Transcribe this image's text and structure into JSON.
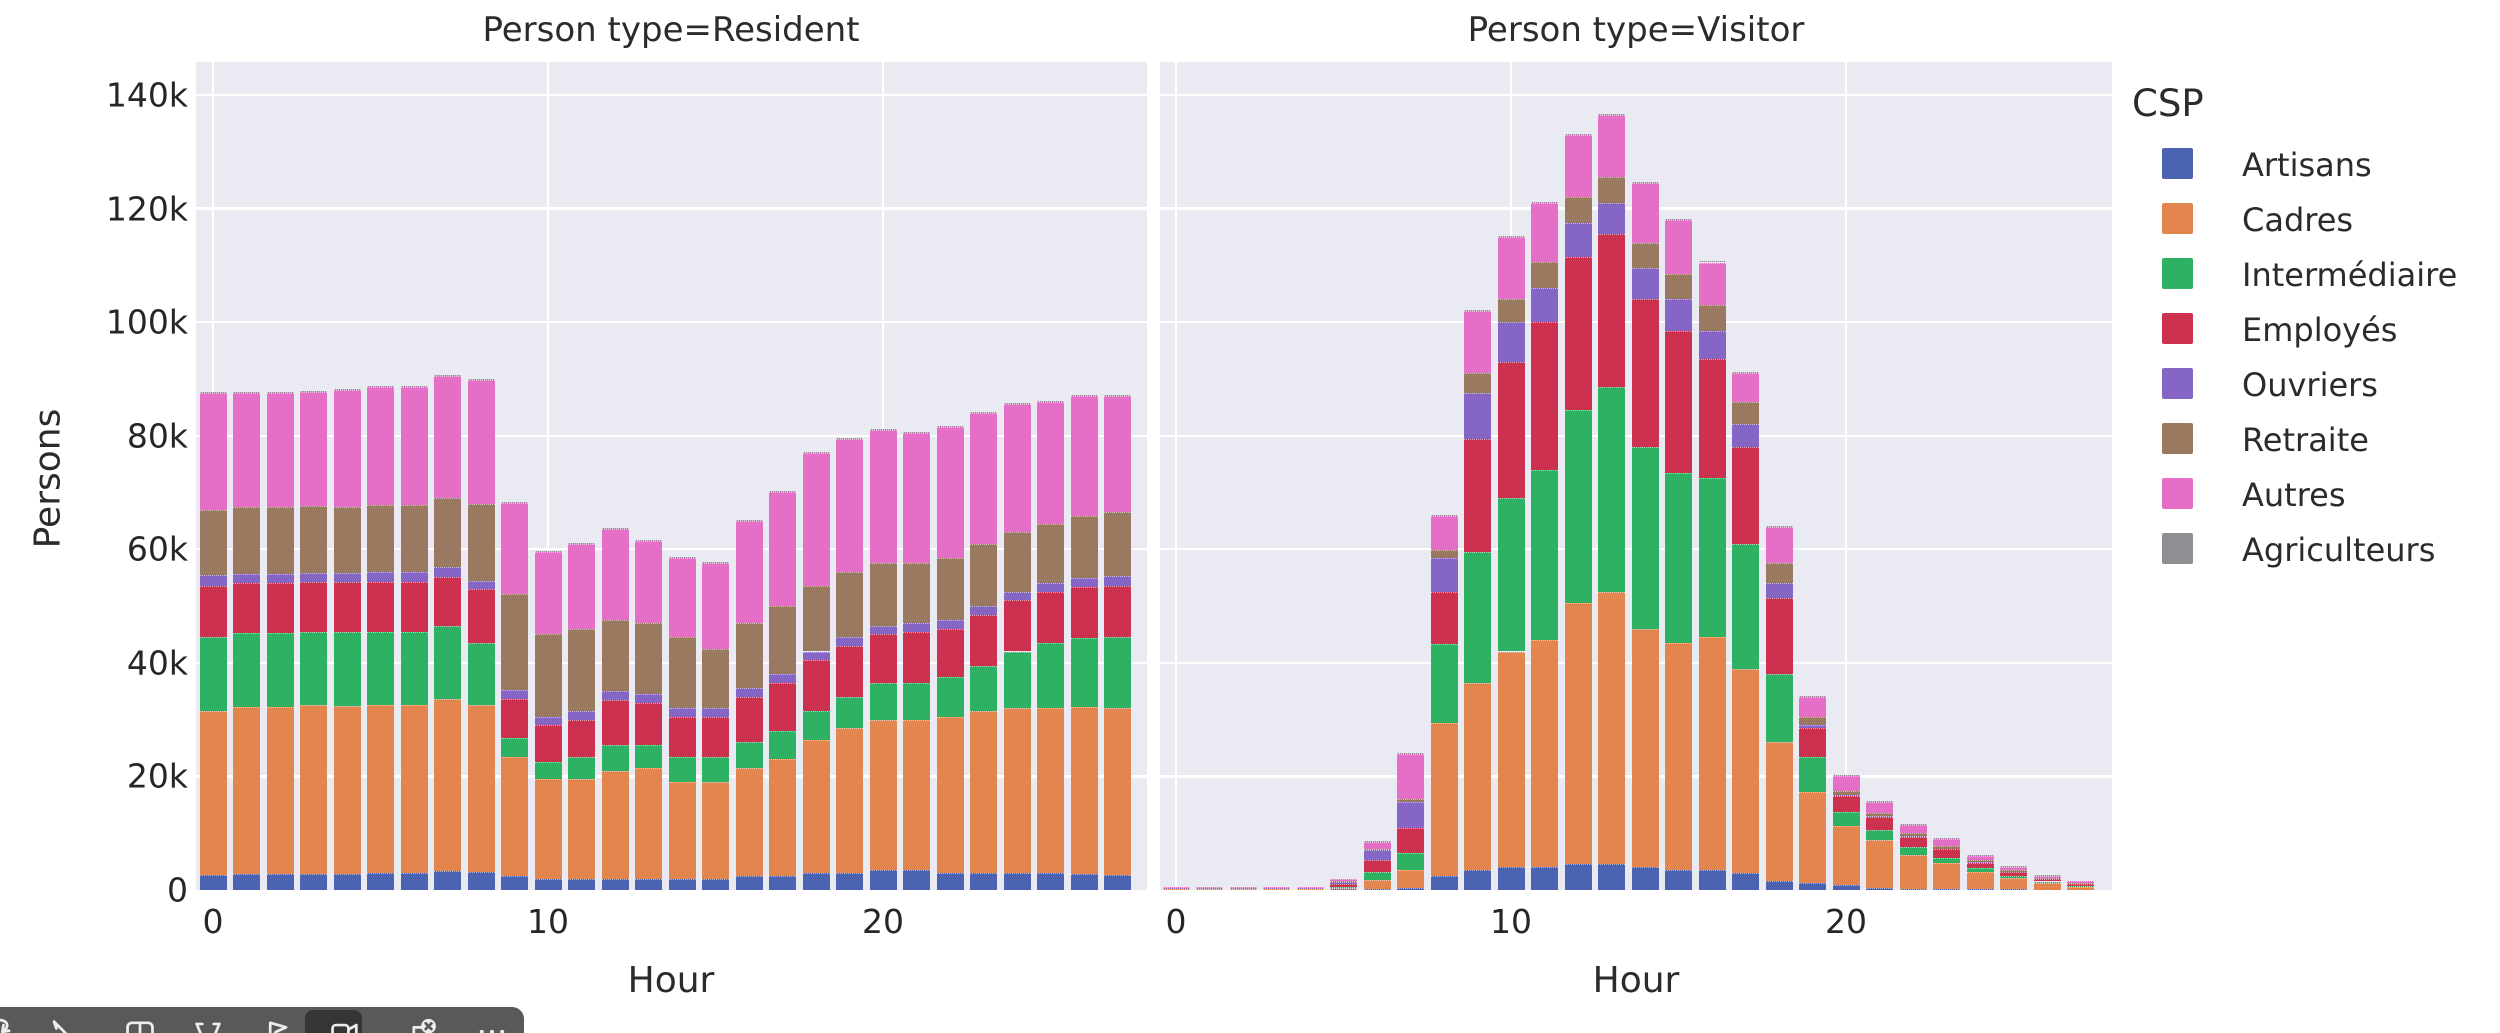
{
  "figure": {
    "background": "#ffffff",
    "panel_background": "#eaeaf2",
    "grid_color": "#ffffff",
    "text_color": "#262626"
  },
  "facets": [
    {
      "title": "Person type=Resident",
      "xlabel": "Hour"
    },
    {
      "title": "Person type=Visitor",
      "xlabel": "Hour"
    }
  ],
  "axes": {
    "ylabel": "Persons",
    "yticks": [
      "0",
      "20k",
      "40k",
      "60k",
      "80k",
      "100k",
      "120k",
      "140k"
    ],
    "ytick_values_k": [
      0,
      20,
      40,
      60,
      80,
      100,
      120,
      140
    ],
    "xticks": [
      "0",
      "10",
      "20"
    ],
    "xtick_values": [
      0,
      10,
      20
    ],
    "ylim_k": [
      0,
      145.7
    ],
    "xlim_hours": [
      0,
      27
    ],
    "grid": true
  },
  "legend": {
    "title": "CSP",
    "items": [
      {
        "label": "Artisans",
        "color": "#4c63b2"
      },
      {
        "label": "Cadres",
        "color": "#e2854e"
      },
      {
        "label": "Intermédiaire",
        "color": "#2eb163"
      },
      {
        "label": "Employés",
        "color": "#cc3150"
      },
      {
        "label": "Ouvriers",
        "color": "#8566c5"
      },
      {
        "label": "Retraite",
        "color": "#997a60"
      },
      {
        "label": "Autres",
        "color": "#e56ec6"
      },
      {
        "label": "Agriculteurs",
        "color": "#8e8e93"
      }
    ]
  },
  "chart_data": [
    {
      "type": "bar",
      "stacked": true,
      "facet": "Person type=Resident",
      "x": [
        0,
        1,
        2,
        3,
        4,
        5,
        6,
        7,
        8,
        9,
        10,
        11,
        12,
        13,
        14,
        15,
        16,
        17,
        18,
        19,
        20,
        21,
        22,
        23,
        24,
        25,
        26,
        27
      ],
      "units": "thousands of persons",
      "series": [
        {
          "name": "Artisans",
          "color": "#4c63b2",
          "values": [
            2.6,
            2.8,
            2.8,
            2.9,
            2.9,
            3.0,
            3.0,
            3.4,
            3.2,
            2.5,
            2.0,
            2.0,
            2.0,
            2.0,
            2.0,
            2.0,
            2.5,
            2.5,
            3.0,
            3.0,
            3.5,
            3.5,
            3.0,
            3.0,
            3.0,
            3.0,
            2.8,
            2.6
          ]
        },
        {
          "name": "Cadres",
          "color": "#e2854e",
          "values": [
            29,
            29.5,
            29.5,
            29.6,
            29.5,
            29.5,
            29.5,
            30.2,
            29.3,
            21,
            17.5,
            17.5,
            19,
            19.5,
            17,
            17,
            19,
            20.5,
            23.5,
            25.5,
            26.5,
            26.5,
            27.5,
            28.5,
            29,
            29,
            29.5,
            29.4
          ]
        },
        {
          "name": "Intermédiaire",
          "color": "#2eb163",
          "values": [
            13,
            13,
            13,
            13,
            13,
            13,
            13,
            12.9,
            11,
            3.2,
            3,
            4,
            4.5,
            4,
            4.5,
            4.5,
            4.5,
            5,
            5,
            5.5,
            6.5,
            6.5,
            7,
            8,
            10,
            11.5,
            12,
            12.5
          ]
        },
        {
          "name": "Employés",
          "color": "#cc3150",
          "values": [
            9,
            8.7,
            8.7,
            8.7,
            8.8,
            8.8,
            8.8,
            8.6,
            9.5,
            7,
            6.5,
            6.5,
            8,
            7.5,
            7,
            7,
            8,
            8.5,
            9,
            9,
            8.5,
            9,
            8.5,
            9,
            9,
            9,
            9,
            9
          ]
        },
        {
          "name": "Ouvriers",
          "color": "#8566c5",
          "values": [
            1.8,
            1.7,
            1.7,
            1.7,
            1.7,
            1.7,
            1.7,
            1.7,
            1.5,
            1.5,
            1.5,
            1.5,
            1.5,
            1.5,
            1.5,
            1.5,
            1.5,
            1.5,
            1.5,
            1.5,
            1.5,
            1.5,
            1.5,
            1.5,
            1.5,
            1.5,
            1.7,
            1.8
          ]
        },
        {
          "name": "Retraite",
          "color": "#997a60",
          "values": [
            11.6,
            11.8,
            11.8,
            11.7,
            11.6,
            11.8,
            11.8,
            12.2,
            13.5,
            17,
            14.5,
            14.5,
            12.5,
            12.5,
            12.5,
            10.5,
            11.5,
            12,
            11.5,
            11.5,
            11,
            10.5,
            11,
            11,
            10.5,
            10.5,
            10.8,
            11.2
          ]
        },
        {
          "name": "Autres",
          "color": "#e56ec6",
          "values": [
            20.5,
            20,
            20,
            20.1,
            20.5,
            20.7,
            20.8,
            21.5,
            21.8,
            16,
            14.5,
            15,
            16,
            14.5,
            14,
            15,
            18,
            20,
            23.5,
            23.5,
            23.5,
            23,
            23,
            23,
            22.5,
            21.5,
            21.2,
            20.5
          ]
        },
        {
          "name": "Agriculteurs",
          "color": "#8e8e93",
          "values": [
            0.1,
            0.1,
            0.1,
            0.1,
            0.1,
            0.1,
            0.1,
            0.1,
            0.1,
            0.1,
            0.1,
            0.1,
            0.1,
            0.1,
            0.1,
            0.1,
            0.1,
            0.1,
            0.1,
            0.1,
            0.1,
            0.1,
            0.1,
            0.1,
            0.1,
            0.1,
            0.1,
            0.1
          ]
        }
      ]
    },
    {
      "type": "bar",
      "stacked": true,
      "facet": "Person type=Visitor",
      "x": [
        0,
        1,
        2,
        3,
        4,
        5,
        6,
        7,
        8,
        9,
        10,
        11,
        12,
        13,
        14,
        15,
        16,
        17,
        18,
        19,
        20,
        21,
        22,
        23,
        24,
        25,
        26,
        27
      ],
      "units": "thousands of persons",
      "series": [
        {
          "name": "Artisans",
          "color": "#4c63b2",
          "values": [
            0,
            0,
            0,
            0,
            0,
            0.1,
            0.2,
            0.3,
            2.4,
            3.5,
            4,
            4,
            4.5,
            4.5,
            4,
            3.5,
            3.5,
            3,
            1.5,
            1.2,
            0.8,
            0.3,
            0.2,
            0.2,
            0.1,
            0.1,
            0.05,
            0
          ]
        },
        {
          "name": "Cadres",
          "color": "#e2854e",
          "values": [
            0.1,
            0.1,
            0.1,
            0.1,
            0.1,
            0.3,
            1.5,
            3.2,
            27,
            33,
            38,
            40,
            46,
            48,
            42,
            40,
            41,
            36,
            24.5,
            16,
            10.5,
            8.5,
            6,
            4.5,
            3,
            2,
            1.2,
            0.6
          ]
        },
        {
          "name": "Intermédiaire",
          "color": "#2eb163",
          "values": [
            0.05,
            0.05,
            0.05,
            0.05,
            0.05,
            0.2,
            1.5,
            3,
            14,
            23,
            27,
            30,
            34,
            36,
            32,
            30,
            28,
            22,
            12,
            6.3,
            2.5,
            1.8,
            1.3,
            1,
            0.7,
            0.4,
            0.25,
            0.15
          ]
        },
        {
          "name": "Employés",
          "color": "#cc3150",
          "values": [
            0.1,
            0.1,
            0.1,
            0.1,
            0.1,
            0.4,
            2,
            4.5,
            9,
            20,
            24,
            26,
            27,
            27,
            26,
            25,
            21,
            17,
            13.5,
            5,
            2.7,
            2.2,
            1.8,
            1.5,
            1,
            0.7,
            0.45,
            0.35
          ]
        },
        {
          "name": "Ouvriers",
          "color": "#8566c5",
          "values": [
            0.05,
            0.05,
            0.05,
            0.05,
            0.05,
            0.4,
            1.8,
            4.5,
            6,
            8,
            7,
            6,
            6,
            5.5,
            5.5,
            5.5,
            5,
            4,
            2.5,
            0.5,
            0.3,
            0.2,
            0.2,
            0.1,
            0.1,
            0.05,
            0.05,
            0
          ]
        },
        {
          "name": "Retraite",
          "color": "#997a60",
          "values": [
            0,
            0,
            0,
            0,
            0,
            0.1,
            0.3,
            0.5,
            1.5,
            3.5,
            4,
            4.5,
            4.5,
            4.5,
            4.5,
            4.5,
            4.5,
            4,
            3.5,
            1.5,
            0.7,
            0.5,
            0.5,
            0.4,
            0.3,
            0.2,
            0.1,
            0.1
          ]
        },
        {
          "name": "Autres",
          "color": "#e56ec6",
          "values": [
            0.2,
            0.2,
            0.2,
            0.2,
            0.2,
            0.5,
            1.2,
            8,
            6,
            11,
            11,
            10.5,
            11,
            11,
            10.5,
            9.5,
            7.5,
            5,
            6.5,
            3.5,
            2.5,
            2,
            1.5,
            1.3,
            0.8,
            0.55,
            0.4,
            0.3
          ]
        },
        {
          "name": "Agriculteurs",
          "color": "#8e8e93",
          "values": [
            0,
            0,
            0,
            0,
            0,
            0,
            0.05,
            0.1,
            0.1,
            0.1,
            0.1,
            0.1,
            0.1,
            0.1,
            0.1,
            0.1,
            0.1,
            0.1,
            0.1,
            0.1,
            0.1,
            0.1,
            0.2,
            0.2,
            0.1,
            0.05,
            0.05,
            0
          ]
        }
      ]
    }
  ],
  "toolbar": {
    "background": "#59595b",
    "active_background": "#353538",
    "icon_color": "#ededed",
    "more_label": "...",
    "buttons": [
      {
        "name": "undo-icon"
      },
      {
        "name": "pen-icon"
      },
      {
        "name": "windows-icon"
      },
      {
        "name": "funnel-icon"
      },
      {
        "name": "flag-icon"
      },
      {
        "name": "camera-icon",
        "active": true
      },
      {
        "name": "close-badge-icon"
      },
      {
        "name": "more-icon"
      }
    ]
  }
}
